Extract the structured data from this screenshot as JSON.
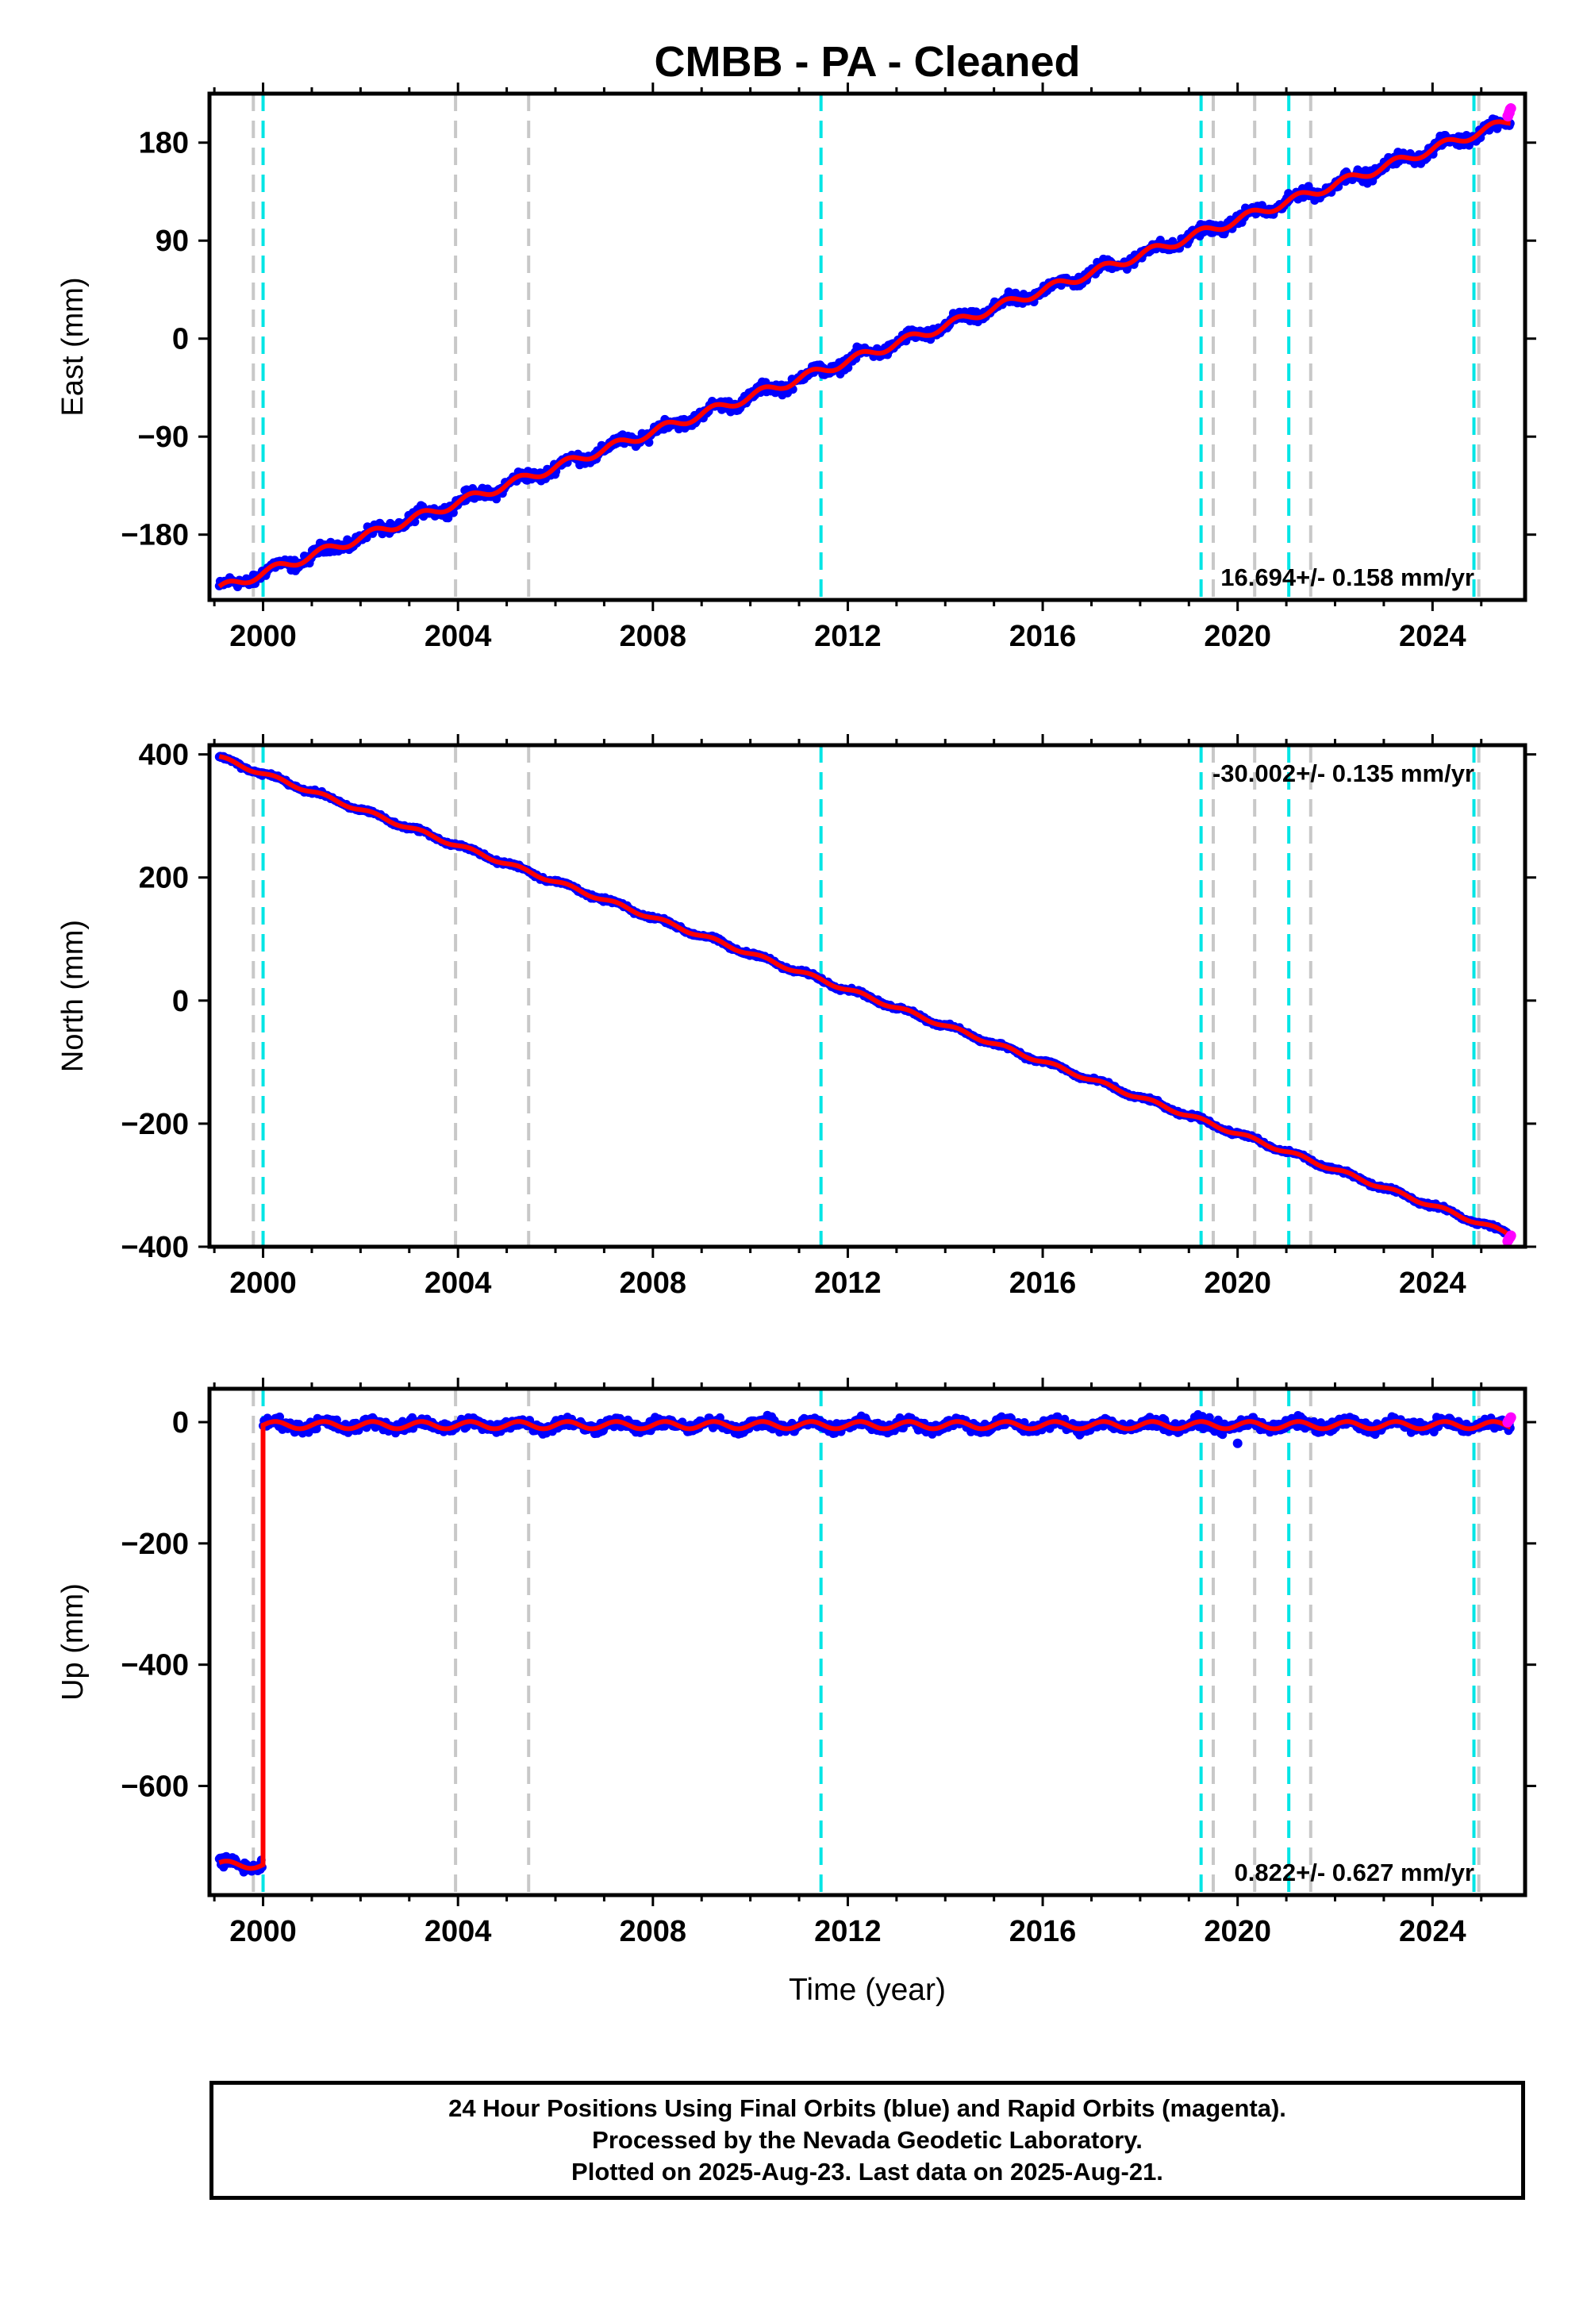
{
  "title": "CMBB  - PA - Cleaned",
  "xlabel": "Time (year)",
  "colors": {
    "final": "#0000ff",
    "rapid": "#ff00ff",
    "model": "#ff0000",
    "equipment_change": "#00e5e5",
    "other_event": "#c8c8c8"
  },
  "chart_data": [
    {
      "type": "scatter",
      "ylabel": "East (mm)",
      "xlim": [
        1998.9,
        2025.9
      ],
      "ylim": [
        -240,
        225
      ],
      "xticks": [
        2000,
        2004,
        2008,
        2012,
        2016,
        2020,
        2024
      ],
      "yticks": [
        -180,
        -90,
        0,
        90,
        180
      ],
      "ytick_labels": [
        "−180",
        "−90",
        "0",
        "90",
        "180"
      ],
      "rate_label": "16.694+/- 0.158 mm/yr",
      "rate_position": "bottom-right",
      "trend": [
        [
          1999.1,
          -230
        ],
        [
          2025.6,
          200
        ]
      ],
      "rapid_end": [
        2025.6,
        212
      ],
      "equipment_change_lines": [
        2000.0,
        2011.45,
        2019.25,
        2021.05,
        2024.85
      ],
      "other_event_lines": [
        1999.8,
        2003.95,
        2005.45,
        2019.5,
        2020.35,
        2021.5,
        2024.95
      ]
    },
    {
      "type": "scatter",
      "ylabel": "North (mm)",
      "xlim": [
        1998.9,
        2025.9
      ],
      "ylim": [
        -400,
        415
      ],
      "xticks": [
        2000,
        2004,
        2008,
        2012,
        2016,
        2020,
        2024
      ],
      "yticks": [
        -400,
        -200,
        0,
        200,
        400
      ],
      "ytick_labels": [
        "−400",
        "−200",
        "0",
        "200",
        "400"
      ],
      "rate_label": "-30.002+/- 0.135 mm/yr",
      "rate_position": "top-right",
      "trend": [
        [
          1999.1,
          395
        ],
        [
          2025.6,
          -380
        ]
      ],
      "rapid_end": [
        2025.6,
        -382
      ],
      "equipment_change_lines": [
        2000.0,
        2011.45,
        2019.25,
        2021.05,
        2024.85
      ],
      "other_event_lines": [
        1999.8,
        2003.95,
        2005.45,
        2019.5,
        2020.35,
        2021.5,
        2024.95
      ]
    },
    {
      "type": "scatter",
      "ylabel": "Up (mm)",
      "xlim": [
        1998.9,
        2025.9
      ],
      "ylim": [
        -780,
        55
      ],
      "xticks": [
        2000,
        2004,
        2008,
        2012,
        2016,
        2020,
        2024
      ],
      "yticks": [
        -600,
        -400,
        -200,
        0
      ],
      "ytick_labels": [
        "−600",
        "−400",
        "−200",
        "0"
      ],
      "rate_label": "0.822+/- 0.627 mm/yr",
      "rate_position": "bottom-right",
      "offset": {
        "before": -730,
        "after": -5,
        "year": 2000.0
      },
      "outlier": [
        2020.0,
        -35
      ],
      "rapid_end": [
        2025.6,
        8
      ],
      "equipment_change_lines": [
        2000.0,
        2011.45,
        2019.25,
        2021.05,
        2024.85
      ],
      "other_event_lines": [
        1999.8,
        2003.95,
        2005.45,
        2019.5,
        2020.35,
        2021.5,
        2024.95
      ]
    }
  ],
  "footer": {
    "line1": "24 Hour Positions Using Final Orbits (blue) and Rapid Orbits (magenta).",
    "line2": "Processed by the Nevada Geodetic Laboratory.",
    "line3": "Plotted on 2025-Aug-23. Last data on 2025-Aug-21."
  }
}
